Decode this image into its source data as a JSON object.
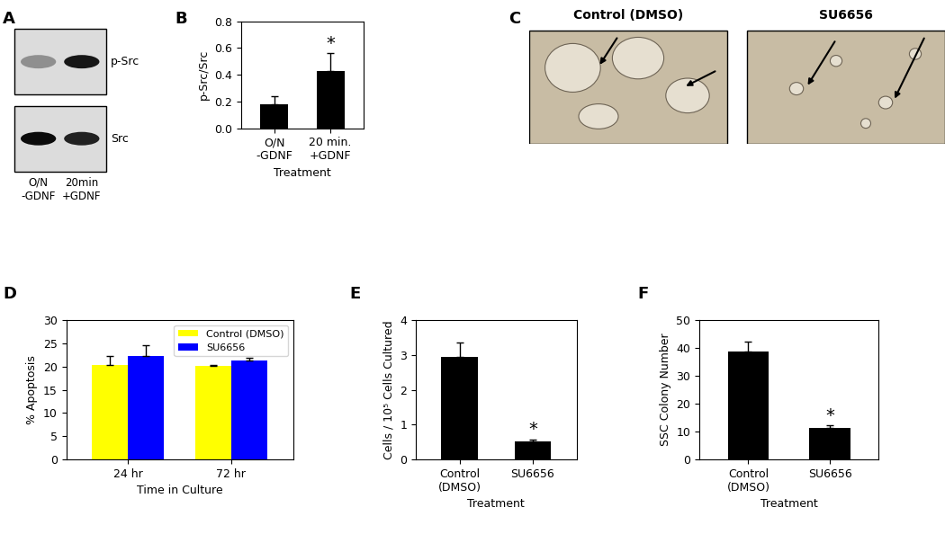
{
  "blot": {
    "panel": "A",
    "bands": [
      "p-Src",
      "Src"
    ],
    "lanes": [
      "O/N\n-GDNF",
      "20min\n+GDNF"
    ]
  },
  "micrographs": {
    "panel": "C",
    "images": [
      "Control (DMSO)",
      "SU6656"
    ]
  },
  "chart_data": [
    {
      "type": "bar",
      "panel": "B",
      "categories": [
        "O/N\n-GDNF",
        "20 min.\n+GDNF"
      ],
      "values": [
        0.18,
        0.43
      ],
      "error": [
        0.06,
        0.13
      ],
      "color": "#000000",
      "ylim": [
        0.0,
        0.8
      ],
      "yticks": [
        0.0,
        0.2,
        0.4,
        0.6,
        0.8
      ],
      "y_label": "p-Src/Src",
      "x_label": "Treatment",
      "annotations": [
        {
          "text": "*",
          "category": "20 min.\n+GDNF"
        }
      ]
    },
    {
      "type": "bar",
      "panel": "D",
      "categories": [
        "24 hr",
        "72 hr"
      ],
      "series": [
        {
          "name": "Control (DMSO)",
          "color": "#ffff00",
          "values": [
            20.3,
            20.2
          ],
          "error": [
            2.0,
            0.2
          ]
        },
        {
          "name": "SU6656",
          "color": "#0000ff",
          "values": [
            22.4,
            21.4
          ],
          "error": [
            2.3,
            0.6
          ]
        }
      ],
      "ylim": [
        0,
        30
      ],
      "yticks": [
        0,
        5,
        10,
        15,
        20,
        25,
        30
      ],
      "y_label": "% Apoptosis",
      "x_label": "Time in Culture",
      "legend": "upper right"
    },
    {
      "type": "bar",
      "panel": "E",
      "categories": [
        "Control\n(DMSO)",
        "SU6656"
      ],
      "values": [
        2.95,
        0.52
      ],
      "error": [
        0.4,
        0.05
      ],
      "color": "#000000",
      "ylim": [
        0,
        4
      ],
      "yticks": [
        0,
        1,
        2,
        3,
        4
      ],
      "y_label": "Cells / 10⁵ Cells Cultured",
      "x_label": "Treatment",
      "annotations": [
        {
          "text": "*",
          "category": "SU6656"
        }
      ]
    },
    {
      "type": "bar",
      "panel": "F",
      "categories": [
        "Control\n(DMSO)",
        "SU6656"
      ],
      "values": [
        38.8,
        11.2
      ],
      "error": [
        3.5,
        0.9
      ],
      "color": "#000000",
      "ylim": [
        0,
        50
      ],
      "yticks": [
        0,
        10,
        20,
        30,
        40,
        50
      ],
      "y_label": "SSC Colony Number",
      "x_label": "Treatment",
      "annotations": [
        {
          "text": "*",
          "category": "SU6656"
        }
      ]
    }
  ]
}
